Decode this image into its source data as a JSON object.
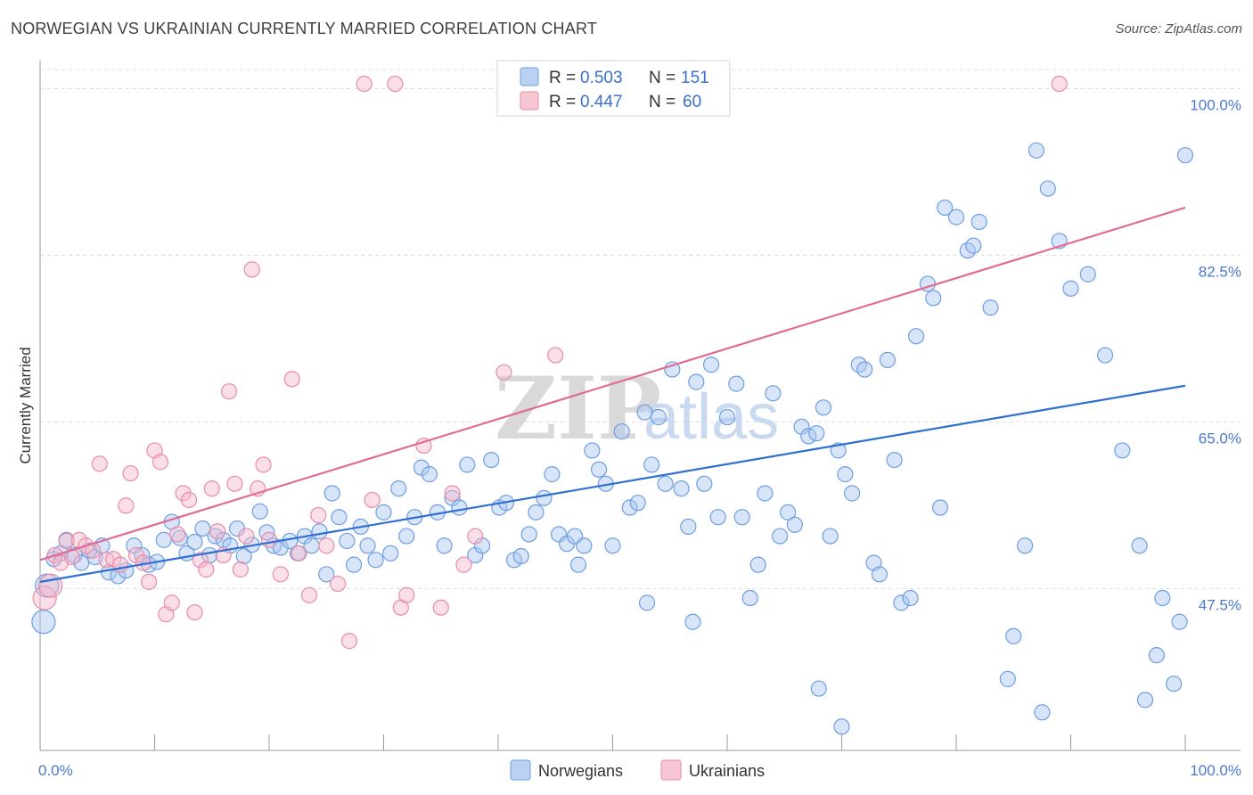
{
  "title": "NORWEGIAN VS UKRAINIAN CURRENTLY MARRIED CORRELATION CHART",
  "source": "Source: ZipAtlas.com",
  "watermark": {
    "zip": "ZIP",
    "atlas": "atlas"
  },
  "legend_top": [
    {
      "r_label": "R =",
      "r_value": "0.503",
      "n_label": "N =",
      "n_value": "151",
      "color": "#a9c6ef"
    },
    {
      "r_label": "R =",
      "r_value": "0.447",
      "n_label": "N =",
      "n_value": "60",
      "color": "#f5b8cb"
    }
  ],
  "chart_data": {
    "type": "scatter",
    "title": "NORWEGIAN VS UKRAINIAN CURRENTLY MARRIED CORRELATION CHART",
    "xlabel": "",
    "ylabel": "Currently Married",
    "xlim": [
      0,
      100
    ],
    "ylim": [
      30.5,
      102
    ],
    "x_tick_labels": [
      "0.0%",
      "100.0%"
    ],
    "y_ticks": [
      47.5,
      65.0,
      82.5,
      100.0
    ],
    "y_tick_labels": [
      "47.5%",
      "65.0%",
      "82.5%",
      "100.0%"
    ],
    "grid": true,
    "legend_placement": "top-center",
    "series": [
      {
        "name": "Norwegians",
        "color": "#a9c6ef",
        "stroke": "#6d9ee3",
        "trend": {
          "x": [
            0,
            100
          ],
          "y": [
            48.2,
            68.8
          ],
          "color": "#2f6fd1"
        },
        "points": [
          [
            0.3,
            44.0
          ],
          [
            0.6,
            47.8
          ],
          [
            1.2,
            50.6
          ],
          [
            1.8,
            51.2
          ],
          [
            2.3,
            52.6
          ],
          [
            3.0,
            51.0
          ],
          [
            3.6,
            50.2
          ],
          [
            4.3,
            51.5
          ],
          [
            4.8,
            50.8
          ],
          [
            5.4,
            52.0
          ],
          [
            6.0,
            49.2
          ],
          [
            6.8,
            48.8
          ],
          [
            7.5,
            49.4
          ],
          [
            8.2,
            52.0
          ],
          [
            8.9,
            51.0
          ],
          [
            9.5,
            50.0
          ],
          [
            10.2,
            50.3
          ],
          [
            10.8,
            52.6
          ],
          [
            11.5,
            54.5
          ],
          [
            12.2,
            52.8
          ],
          [
            12.8,
            51.2
          ],
          [
            13.5,
            52.4
          ],
          [
            14.2,
            53.8
          ],
          [
            14.8,
            51.0
          ],
          [
            15.3,
            53.0
          ],
          [
            16.0,
            52.6
          ],
          [
            16.6,
            52.0
          ],
          [
            17.2,
            53.8
          ],
          [
            17.8,
            50.9
          ],
          [
            18.5,
            52.1
          ],
          [
            19.2,
            55.6
          ],
          [
            19.8,
            53.4
          ],
          [
            20.4,
            52.0
          ],
          [
            21.0,
            51.8
          ],
          [
            21.8,
            52.5
          ],
          [
            22.5,
            51.2
          ],
          [
            23.1,
            53.0
          ],
          [
            23.7,
            52.0
          ],
          [
            24.4,
            53.5
          ],
          [
            25.0,
            49.0
          ],
          [
            25.5,
            57.5
          ],
          [
            26.1,
            55.0
          ],
          [
            26.8,
            52.5
          ],
          [
            27.4,
            50.0
          ],
          [
            28.0,
            54.0
          ],
          [
            28.6,
            52.0
          ],
          [
            29.3,
            50.5
          ],
          [
            30.0,
            55.5
          ],
          [
            30.6,
            51.2
          ],
          [
            31.3,
            58.0
          ],
          [
            32.0,
            53.0
          ],
          [
            32.7,
            55.0
          ],
          [
            33.3,
            60.2
          ],
          [
            34.0,
            59.5
          ],
          [
            34.7,
            55.5
          ],
          [
            35.3,
            52.0
          ],
          [
            36.0,
            57.0
          ],
          [
            36.6,
            56.0
          ],
          [
            37.3,
            60.5
          ],
          [
            38.0,
            51.0
          ],
          [
            38.6,
            52.0
          ],
          [
            39.4,
            61.0
          ],
          [
            40.1,
            56.0
          ],
          [
            40.7,
            56.5
          ],
          [
            41.4,
            50.5
          ],
          [
            42.0,
            50.9
          ],
          [
            42.7,
            53.2
          ],
          [
            43.3,
            55.5
          ],
          [
            44.0,
            57.0
          ],
          [
            44.7,
            59.5
          ],
          [
            45.3,
            53.2
          ],
          [
            46.0,
            52.2
          ],
          [
            46.7,
            53.0
          ],
          [
            47.5,
            52.0
          ],
          [
            48.2,
            62.0
          ],
          [
            48.8,
            60.0
          ],
          [
            49.4,
            58.5
          ],
          [
            50.0,
            52.0
          ],
          [
            50.8,
            64.0
          ],
          [
            51.5,
            56.0
          ],
          [
            52.2,
            56.5
          ],
          [
            52.8,
            66.0
          ],
          [
            53.4,
            60.5
          ],
          [
            54.0,
            65.5
          ],
          [
            54.6,
            58.5
          ],
          [
            55.2,
            70.5
          ],
          [
            56.0,
            58.0
          ],
          [
            56.6,
            54.0
          ],
          [
            57.3,
            69.2
          ],
          [
            58.0,
            58.5
          ],
          [
            58.6,
            71.0
          ],
          [
            59.2,
            55.0
          ],
          [
            60.0,
            65.5
          ],
          [
            60.8,
            69.0
          ],
          [
            61.3,
            55.0
          ],
          [
            62.0,
            46.5
          ],
          [
            62.7,
            50.0
          ],
          [
            63.3,
            57.5
          ],
          [
            64.0,
            68.0
          ],
          [
            64.6,
            53.0
          ],
          [
            65.3,
            55.5
          ],
          [
            65.9,
            54.2
          ],
          [
            66.5,
            64.5
          ],
          [
            67.1,
            63.5
          ],
          [
            67.8,
            63.8
          ],
          [
            68.4,
            66.5
          ],
          [
            69.0,
            53.0
          ],
          [
            69.7,
            62.0
          ],
          [
            70.3,
            59.5
          ],
          [
            70.9,
            57.5
          ],
          [
            71.5,
            71.0
          ],
          [
            72.0,
            70.5
          ],
          [
            72.8,
            50.2
          ],
          [
            73.3,
            49.0
          ],
          [
            74.0,
            71.5
          ],
          [
            74.6,
            61.0
          ],
          [
            75.2,
            46.0
          ],
          [
            76.0,
            46.5
          ],
          [
            76.5,
            74.0
          ],
          [
            77.5,
            79.5
          ],
          [
            78.0,
            78.0
          ],
          [
            78.6,
            56.0
          ],
          [
            79.0,
            87.5
          ],
          [
            80.0,
            86.5
          ],
          [
            81.0,
            83.0
          ],
          [
            81.5,
            83.5
          ],
          [
            82.0,
            86.0
          ],
          [
            83.0,
            77.0
          ],
          [
            84.5,
            38.0
          ],
          [
            85.0,
            42.5
          ],
          [
            86.0,
            52.0
          ],
          [
            87.0,
            93.5
          ],
          [
            88.0,
            89.5
          ],
          [
            89.0,
            84.0
          ],
          [
            90.0,
            79.0
          ],
          [
            91.5,
            80.5
          ],
          [
            93.0,
            72.0
          ],
          [
            94.5,
            62.0
          ],
          [
            96.0,
            52.0
          ],
          [
            96.5,
            35.8
          ],
          [
            97.5,
            40.5
          ],
          [
            98.0,
            46.5
          ],
          [
            99.0,
            37.5
          ],
          [
            99.5,
            44.0
          ],
          [
            100.0,
            93.0
          ],
          [
            47.0,
            50.0
          ],
          [
            53.0,
            46.0
          ],
          [
            57.0,
            44.0
          ],
          [
            68.0,
            37.0
          ],
          [
            70.0,
            33.0
          ],
          [
            87.5,
            34.5
          ]
        ]
      },
      {
        "name": "Ukrainians",
        "color": "#f5b8cb",
        "stroke": "#e88ba8",
        "trend": {
          "x": [
            0,
            100
          ],
          "y": [
            50.5,
            87.5
          ],
          "color": "#e06c96"
        },
        "points": [
          [
            0.4,
            46.5
          ],
          [
            0.9,
            47.8
          ],
          [
            1.3,
            51.0
          ],
          [
            1.8,
            50.2
          ],
          [
            2.3,
            52.5
          ],
          [
            2.8,
            50.8
          ],
          [
            3.4,
            52.6
          ],
          [
            4.0,
            52.0
          ],
          [
            4.6,
            51.5
          ],
          [
            5.2,
            60.6
          ],
          [
            5.8,
            50.5
          ],
          [
            6.4,
            50.6
          ],
          [
            7.0,
            50.0
          ],
          [
            7.5,
            56.2
          ],
          [
            7.9,
            59.6
          ],
          [
            8.4,
            51.0
          ],
          [
            9.0,
            50.2
          ],
          [
            9.5,
            48.2
          ],
          [
            10.0,
            62.0
          ],
          [
            10.5,
            60.8
          ],
          [
            11.0,
            44.8
          ],
          [
            11.5,
            46.0
          ],
          [
            12.0,
            53.2
          ],
          [
            12.5,
            57.5
          ],
          [
            13.0,
            56.8
          ],
          [
            13.5,
            45.0
          ],
          [
            14.0,
            50.5
          ],
          [
            14.5,
            49.5
          ],
          [
            15.0,
            58.0
          ],
          [
            15.5,
            53.5
          ],
          [
            16.0,
            51.0
          ],
          [
            16.5,
            68.2
          ],
          [
            17.0,
            58.5
          ],
          [
            17.5,
            49.5
          ],
          [
            18.0,
            53.0
          ],
          [
            18.5,
            81.0
          ],
          [
            19.0,
            58.0
          ],
          [
            19.5,
            60.5
          ],
          [
            20.0,
            52.6
          ],
          [
            21.0,
            49.0
          ],
          [
            22.0,
            69.5
          ],
          [
            22.6,
            51.2
          ],
          [
            23.5,
            46.8
          ],
          [
            24.3,
            55.2
          ],
          [
            25.0,
            52.0
          ],
          [
            26.0,
            48.0
          ],
          [
            27.0,
            42.0
          ],
          [
            28.3,
            100.5
          ],
          [
            29.0,
            56.8
          ],
          [
            31.0,
            100.5
          ],
          [
            31.5,
            45.5
          ],
          [
            32.0,
            46.8
          ],
          [
            33.5,
            62.5
          ],
          [
            35.0,
            45.5
          ],
          [
            36.0,
            57.5
          ],
          [
            37.0,
            50.0
          ],
          [
            38.0,
            53.0
          ],
          [
            40.5,
            70.2
          ],
          [
            45.0,
            72.0
          ],
          [
            89.0,
            100.5
          ]
        ]
      }
    ]
  },
  "bottom_legend": [
    {
      "label": "Norwegians",
      "color": "#a9c6ef"
    },
    {
      "label": "Ukrainians",
      "color": "#f5b8cb"
    }
  ]
}
